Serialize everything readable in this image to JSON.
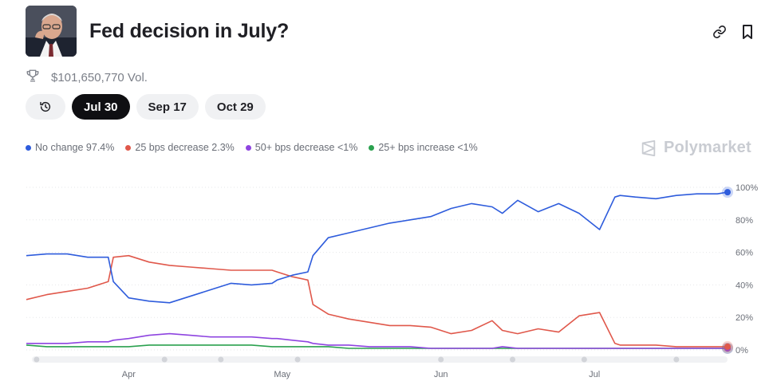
{
  "market": {
    "title": "Fed decision in July?",
    "volume": "$101,650,770 Vol."
  },
  "icons": {
    "trophy": "trophy-icon",
    "link": "link-icon",
    "bookmark": "bookmark-icon",
    "history": "history-icon",
    "brand": "polymarket-logo-icon"
  },
  "tabs": [
    {
      "label": "Jul 30",
      "active": true
    },
    {
      "label": "Sep 17",
      "active": false
    },
    {
      "label": "Oct 29",
      "active": false
    }
  ],
  "legend": [
    {
      "label": "No change 97.4%",
      "color": "#2e5cdc"
    },
    {
      "label": "25 bps decrease 2.3%",
      "color": "#e0584b"
    },
    {
      "label": "50+ bps decrease <1%",
      "color": "#8e44e0"
    },
    {
      "label": "25+ bps increase <1%",
      "color": "#2aa14f"
    }
  ],
  "brand": "Polymarket",
  "chart_data": {
    "type": "line",
    "x_labels": [
      "Apr",
      "May",
      "Jun",
      "Jul"
    ],
    "y_ticks": [
      "100%",
      "80%",
      "60%",
      "40%",
      "20%",
      "0%"
    ],
    "ylim": [
      0,
      100
    ],
    "grid": true,
    "x": [
      "Mar 12",
      "Mar 16",
      "Mar 20",
      "Mar 24",
      "Mar 28",
      "Mar 29",
      "Apr 1",
      "Apr 5",
      "Apr 9",
      "Apr 13",
      "Apr 17",
      "Apr 21",
      "Apr 25",
      "Apr 29",
      "Apr 30",
      "May 3",
      "May 6",
      "May 7",
      "May 10",
      "May 14",
      "May 18",
      "May 22",
      "May 26",
      "May 30",
      "Jun 3",
      "Jun 7",
      "Jun 11",
      "Jun 13",
      "Jun 16",
      "Jun 20",
      "Jun 24",
      "Jun 28",
      "Jul 2",
      "Jul 5",
      "Jul 6",
      "Jul 9",
      "Jul 13",
      "Jul 17",
      "Jul 21",
      "Jul 25",
      "Jul 27"
    ],
    "series": [
      {
        "name": "No change",
        "color": "#2e5cdc",
        "values": [
          58,
          59,
          59,
          57,
          57,
          42,
          32,
          30,
          29,
          33,
          37,
          41,
          40,
          41,
          43,
          46,
          48,
          58,
          69,
          72,
          75,
          78,
          80,
          82,
          87,
          90,
          88,
          84,
          92,
          85,
          90,
          84,
          74,
          94,
          95,
          94,
          93,
          95,
          96,
          96,
          97
        ]
      },
      {
        "name": "25 bps decrease",
        "color": "#e0584b",
        "values": [
          31,
          34,
          36,
          38,
          42,
          57,
          58,
          54,
          52,
          51,
          50,
          49,
          49,
          49,
          48,
          45,
          43,
          28,
          22,
          19,
          17,
          15,
          15,
          14,
          10,
          12,
          18,
          12,
          10,
          13,
          11,
          21,
          23,
          4,
          3,
          3,
          3,
          2,
          2,
          2,
          2
        ]
      },
      {
        "name": "50+ bps decrease",
        "color": "#8e44e0",
        "values": [
          4,
          4,
          4,
          5,
          5,
          6,
          7,
          9,
          10,
          9,
          8,
          8,
          8,
          7,
          7,
          6,
          5,
          4,
          3,
          3,
          2,
          2,
          2,
          1,
          1,
          1,
          1,
          2,
          1,
          1,
          1,
          1,
          1,
          1,
          1,
          1,
          1,
          1,
          1,
          1,
          1
        ]
      },
      {
        "name": "25+ bps increase",
        "color": "#2aa14f",
        "values": [
          3,
          2,
          2,
          2,
          2,
          2,
          2,
          3,
          3,
          3,
          3,
          3,
          3,
          2,
          2,
          2,
          2,
          2,
          2,
          1,
          1,
          1,
          1,
          1,
          1,
          1,
          1,
          1,
          1,
          1,
          1,
          1,
          1,
          1,
          1,
          1,
          1,
          1,
          1,
          1,
          1
        ]
      }
    ]
  }
}
